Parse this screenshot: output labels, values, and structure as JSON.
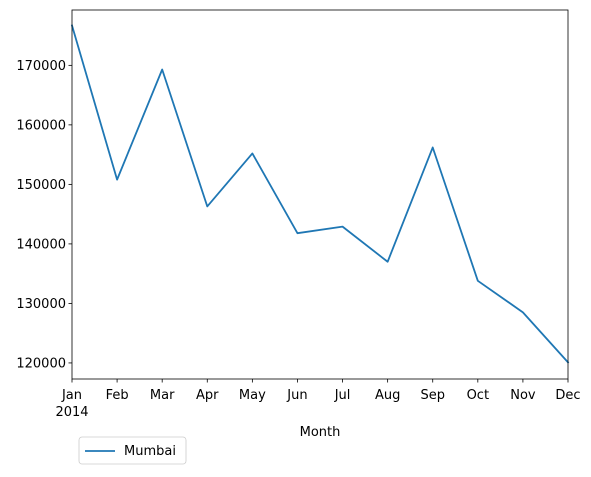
{
  "chart_data": {
    "type": "line",
    "title": "",
    "xlabel": "Month",
    "ylabel": "",
    "year_label": "2014",
    "categories": [
      "Jan",
      "Feb",
      "Mar",
      "Apr",
      "May",
      "Jun",
      "Jul",
      "Aug",
      "Sep",
      "Oct",
      "Nov",
      "Dec"
    ],
    "series": [
      {
        "name": "Mumbai",
        "color": "#1f77b4",
        "values": [
          176700,
          150800,
          169300,
          146300,
          155200,
          141800,
          142900,
          137000,
          156200,
          133800,
          128500,
          120100
        ]
      }
    ],
    "ylim": [
      117300,
      179300
    ],
    "yticks": [
      {
        "value": 120000,
        "label": "120000"
      },
      {
        "value": 130000,
        "label": "130000"
      },
      {
        "value": 140000,
        "label": "140000"
      },
      {
        "value": 150000,
        "label": "150000"
      },
      {
        "value": 160000,
        "label": "160000"
      },
      {
        "value": 170000,
        "label": "170000"
      }
    ],
    "grid": false,
    "legend_position": "below-left"
  }
}
